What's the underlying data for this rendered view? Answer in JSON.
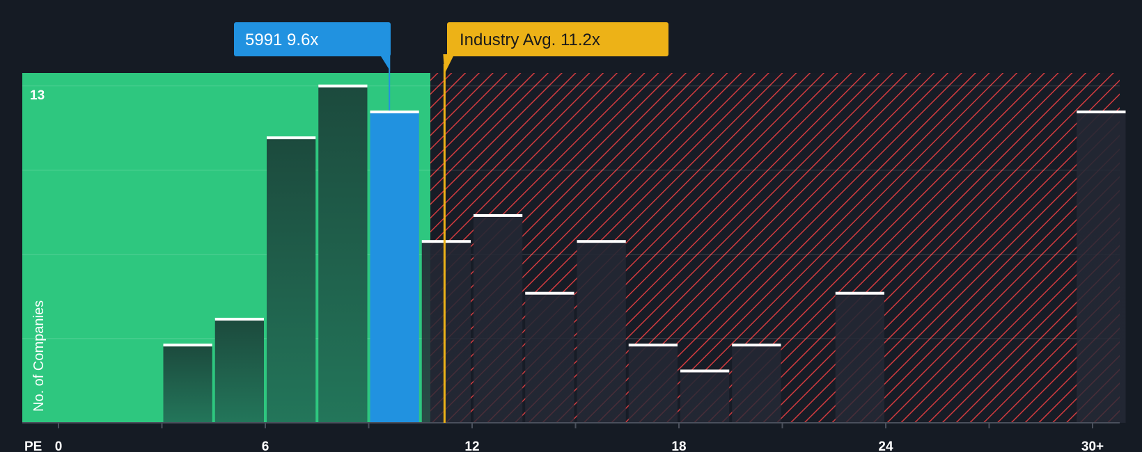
{
  "chart_data": {
    "type": "bar",
    "title": "",
    "xlabel": "PE",
    "ylabel": "No. of Companies",
    "x_ticks": [
      "0",
      "6",
      "12",
      "18",
      "24",
      "30+"
    ],
    "x_tick_values": [
      0,
      6,
      12,
      18,
      24,
      30
    ],
    "xlim": [
      0,
      30.3
    ],
    "ylim": [
      0,
      13.5
    ],
    "y_tick_label": "13",
    "bin_width": 1.5,
    "bins": [
      {
        "x": 3.0,
        "value": 3
      },
      {
        "x": 4.5,
        "value": 4
      },
      {
        "x": 6.0,
        "value": 11
      },
      {
        "x": 7.5,
        "value": 13
      },
      {
        "x": 9.0,
        "value": 12,
        "highlight": true
      },
      {
        "x": 10.5,
        "value": 7
      },
      {
        "x": 12.0,
        "value": 8
      },
      {
        "x": 13.5,
        "value": 5
      },
      {
        "x": 15.0,
        "value": 7
      },
      {
        "x": 16.5,
        "value": 3
      },
      {
        "x": 18.0,
        "value": 2
      },
      {
        "x": 19.5,
        "value": 3
      },
      {
        "x": 22.5,
        "value": 5
      },
      {
        "x": 29.5,
        "value": 12
      }
    ],
    "company": {
      "label": "5991 9.6x",
      "value": 9.6
    },
    "industry": {
      "label": "Industry Avg. 11.2x",
      "value": 11.2
    },
    "colors": {
      "background": "#151b24",
      "undervalued": "#2ec77f",
      "overvalued_hatch": "#d23b3f",
      "bar_green": "#1e4d40",
      "bar_dark": "#222631",
      "company": "#2192e0",
      "industry": "#edb217"
    }
  }
}
